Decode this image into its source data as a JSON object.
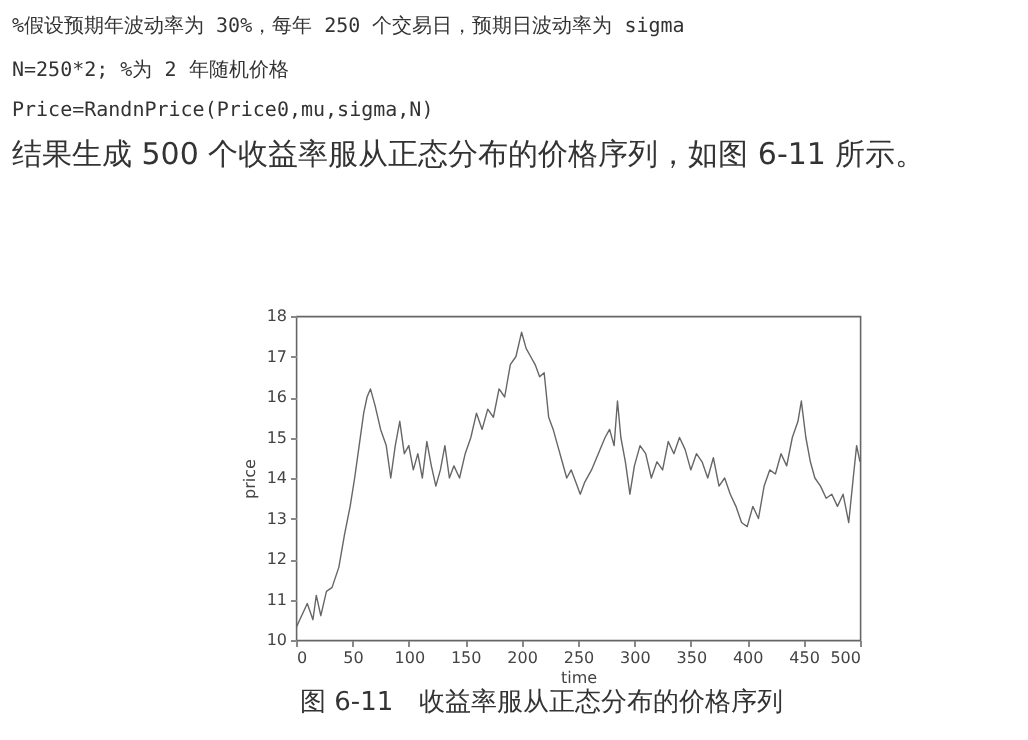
{
  "chart_data": {
    "type": "line",
    "xlabel": "time",
    "ylabel": "price",
    "annotations": [
      "%假设预期年波动率为 30%，每年 250 个交易日，预期日波动率为 sigma",
      "N=250*2; %为 2 年随机价格",
      "Price=RandnPrice(Price0,mu,sigma,N)",
      "结果生成 500 个收益率服从正态分布的价格序列，如图 6-11 所示。",
      "图 6-11　收益率服从正态分布的价格序列"
    ],
    "x": [
      0,
      5,
      10,
      15,
      18,
      22,
      27,
      32,
      38,
      43,
      48,
      52,
      56,
      60,
      63,
      66,
      70,
      75,
      80,
      84,
      88,
      92,
      96,
      100,
      104,
      108,
      112,
      116,
      120,
      124,
      128,
      132,
      136,
      140,
      145,
      150,
      155,
      160,
      165,
      170,
      175,
      180,
      185,
      190,
      195,
      200,
      204,
      208,
      212,
      216,
      220,
      224,
      228,
      232,
      236,
      240,
      244,
      248,
      252,
      256,
      262,
      268,
      274,
      278,
      282,
      285,
      288,
      292,
      296,
      300,
      305,
      310,
      315,
      320,
      325,
      330,
      335,
      340,
      345,
      350,
      355,
      360,
      365,
      370,
      375,
      380,
      385,
      390,
      395,
      400,
      405,
      410,
      415,
      420,
      425,
      430,
      435,
      440,
      445,
      448,
      452,
      456,
      460,
      465,
      470,
      475,
      480,
      485,
      490,
      494,
      497,
      500
    ],
    "series": [
      {
        "color": "#666666",
        "values": [
          10.3,
          10.6,
          10.9,
          10.5,
          11.1,
          10.6,
          11.2,
          11.3,
          11.8,
          12.6,
          13.3,
          14.0,
          14.8,
          15.6,
          16.0,
          16.2,
          15.8,
          15.2,
          14.8,
          14.0,
          14.8,
          15.4,
          14.6,
          14.8,
          14.2,
          14.6,
          14.0,
          14.9,
          14.3,
          13.8,
          14.2,
          14.8,
          14.0,
          14.3,
          14.0,
          14.6,
          15.0,
          15.6,
          15.2,
          15.7,
          15.5,
          16.2,
          16.0,
          16.8,
          17.0,
          17.6,
          17.2,
          17.0,
          16.8,
          16.5,
          16.6,
          15.5,
          15.2,
          14.8,
          14.4,
          14.0,
          14.2,
          13.9,
          13.6,
          13.9,
          14.2,
          14.6,
          15.0,
          15.2,
          14.8,
          15.9,
          15.0,
          14.4,
          13.6,
          14.3,
          14.8,
          14.6,
          14.0,
          14.4,
          14.2,
          14.9,
          14.6,
          15.0,
          14.7,
          14.2,
          14.6,
          14.4,
          14.0,
          14.5,
          13.8,
          14.0,
          13.6,
          13.3,
          12.9,
          12.8,
          13.3,
          13.0,
          13.8,
          14.2,
          14.1,
          14.6,
          14.3,
          15.0,
          15.4,
          15.9,
          15.0,
          14.4,
          14.0,
          13.8,
          13.5,
          13.6,
          13.3,
          13.6,
          12.9,
          14.0,
          14.8,
          14.4
        ]
      }
    ],
    "xlim": [
      0,
      500
    ],
    "xticks": [
      0,
      50,
      100,
      150,
      200,
      250,
      300,
      350,
      400,
      450,
      500
    ],
    "ylim": [
      10,
      18
    ],
    "yticks": [
      10,
      11,
      12,
      13,
      14,
      15,
      16,
      17,
      18
    ],
    "grid": false,
    "marker": "none",
    "line_style": "solid"
  }
}
